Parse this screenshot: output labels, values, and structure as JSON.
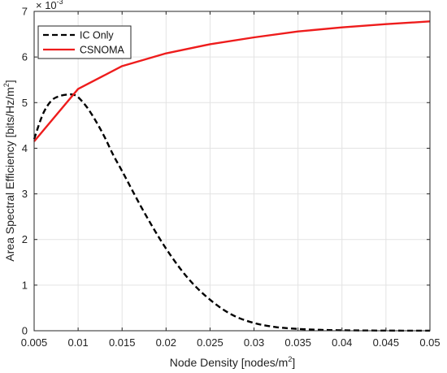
{
  "chart_data": {
    "type": "line",
    "title": "",
    "xlabel": "Node Density [nodes/m",
    "xlabel_sup": "2",
    "xlabel_end": "]",
    "ylabel": "Area Spectral Efficiency [bits/Hz/m",
    "ylabel_sup": "2",
    "ylabel_end": "]",
    "exponent_base": "× 10",
    "exponent_power": "-3",
    "xlim": [
      0.005,
      0.05
    ],
    "ylim": [
      0,
      7
    ],
    "grid": true,
    "legend_position": "top-left",
    "x_ticks": [
      0.005,
      0.01,
      0.015,
      0.02,
      0.025,
      0.03,
      0.035,
      0.04,
      0.045,
      0.05
    ],
    "x_tick_labels": [
      "0.005",
      "0.01",
      "0.015",
      "0.02",
      "0.025",
      "0.03",
      "0.035",
      "0.04",
      "0.045",
      "0.05"
    ],
    "y_ticks": [
      0,
      1,
      2,
      3,
      4,
      5,
      6,
      7
    ],
    "y_tick_labels": [
      "0",
      "1",
      "2",
      "3",
      "4",
      "5",
      "6",
      "7"
    ],
    "series": [
      {
        "name": "IC Only",
        "color": "#000000",
        "style": "dashed",
        "x": [
          0.005,
          0.006,
          0.007,
          0.008,
          0.009,
          0.0095,
          0.01,
          0.011,
          0.012,
          0.013,
          0.014,
          0.015,
          0.0175,
          0.02,
          0.0225,
          0.025,
          0.0275,
          0.03,
          0.0325,
          0.035,
          0.0375,
          0.04,
          0.045,
          0.05
        ],
        "values": [
          4.2,
          4.75,
          5.05,
          5.15,
          5.18,
          5.17,
          5.12,
          4.9,
          4.6,
          4.25,
          3.85,
          3.5,
          2.6,
          1.8,
          1.15,
          0.68,
          0.35,
          0.17,
          0.08,
          0.04,
          0.02,
          0.01,
          0.003,
          0.001
        ]
      },
      {
        "name": "CSNOMA",
        "color": "#ee1c1c",
        "style": "solid",
        "x": [
          0.005,
          0.01,
          0.015,
          0.02,
          0.025,
          0.03,
          0.035,
          0.04,
          0.045,
          0.05
        ],
        "values": [
          4.15,
          5.3,
          5.8,
          6.08,
          6.28,
          6.43,
          6.56,
          6.65,
          6.72,
          6.78
        ]
      }
    ]
  }
}
